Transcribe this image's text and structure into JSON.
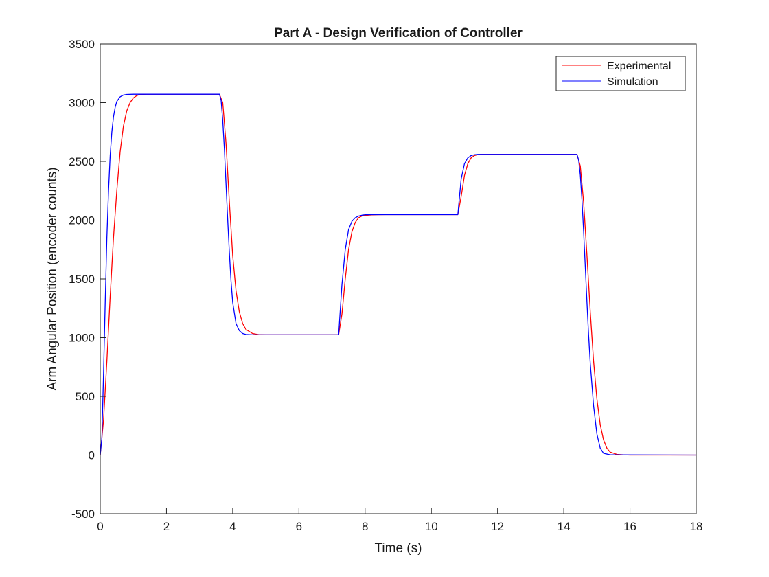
{
  "chart_data": {
    "type": "line",
    "title": "Part A - Design Verification of Controller",
    "xlabel": "Time (s)",
    "ylabel": "Arm Angular Position (encoder counts)",
    "xlim": [
      0,
      18
    ],
    "ylim": [
      -500,
      3500
    ],
    "xticks": [
      0,
      2,
      4,
      6,
      8,
      10,
      12,
      14,
      16,
      18
    ],
    "yticks": [
      -500,
      0,
      500,
      1000,
      1500,
      2000,
      2500,
      3000,
      3500
    ],
    "grid": false,
    "legend_position": "top-right",
    "series": [
      {
        "name": "Experimental",
        "color": "#ff0000",
        "x": [
          0,
          0.1,
          0.2,
          0.3,
          0.4,
          0.5,
          0.6,
          0.7,
          0.8,
          0.9,
          1.0,
          1.1,
          1.2,
          1.4,
          1.6,
          3.6,
          3.7,
          3.8,
          3.9,
          4.0,
          4.1,
          4.2,
          4.3,
          4.4,
          4.6,
          4.8,
          5.0,
          7.2,
          7.3,
          7.4,
          7.5,
          7.6,
          7.7,
          7.8,
          7.9,
          8.0,
          8.2,
          8.4,
          8.6,
          10.8,
          10.9,
          11.0,
          11.1,
          11.2,
          11.3,
          11.4,
          11.5,
          11.6,
          11.8,
          12.0,
          14.4,
          14.5,
          14.6,
          14.7,
          14.8,
          14.9,
          15.0,
          15.1,
          15.2,
          15.3,
          15.4,
          15.6,
          15.8,
          16.0,
          18.0
        ],
        "y": [
          0,
          300,
          800,
          1350,
          1850,
          2250,
          2580,
          2800,
          2930,
          3000,
          3040,
          3060,
          3070,
          3072,
          3072,
          3072,
          3000,
          2650,
          2150,
          1700,
          1400,
          1220,
          1120,
          1070,
          1035,
          1025,
          1024,
          1024,
          1200,
          1500,
          1750,
          1900,
          1980,
          2020,
          2035,
          2040,
          2045,
          2046,
          2047,
          2047,
          2200,
          2380,
          2480,
          2530,
          2550,
          2558,
          2560,
          2560,
          2560,
          2560,
          2560,
          2460,
          2150,
          1700,
          1220,
          800,
          480,
          260,
          130,
          60,
          25,
          6,
          2,
          0,
          0
        ]
      },
      {
        "name": "Simulation",
        "color": "#0000ff",
        "x": [
          0,
          0.05,
          0.1,
          0.15,
          0.2,
          0.25,
          0.3,
          0.35,
          0.4,
          0.45,
          0.5,
          0.6,
          0.7,
          0.8,
          1.0,
          3.6,
          3.65,
          3.7,
          3.75,
          3.8,
          3.85,
          3.9,
          3.95,
          4.0,
          4.1,
          4.2,
          4.3,
          4.4,
          4.6,
          7.2,
          7.3,
          7.4,
          7.5,
          7.6,
          7.7,
          7.8,
          7.9,
          8.0,
          8.2,
          10.8,
          10.9,
          11.0,
          11.1,
          11.2,
          11.3,
          11.4,
          11.6,
          14.4,
          14.45,
          14.5,
          14.55,
          14.6,
          14.65,
          14.7,
          14.75,
          14.8,
          14.9,
          15.0,
          15.1,
          15.2,
          15.4,
          18.0
        ],
        "y": [
          0,
          150,
          700,
          1300,
          1850,
          2250,
          2550,
          2750,
          2880,
          2960,
          3010,
          3050,
          3065,
          3070,
          3072,
          3072,
          3020,
          2850,
          2600,
          2300,
          2000,
          1720,
          1480,
          1300,
          1120,
          1060,
          1035,
          1027,
          1024,
          1024,
          1450,
          1750,
          1920,
          1990,
          2020,
          2035,
          2042,
          2046,
          2047,
          2047,
          2350,
          2480,
          2530,
          2550,
          2557,
          2560,
          2560,
          2560,
          2510,
          2380,
          2170,
          1900,
          1600,
          1300,
          1020,
          780,
          420,
          180,
          60,
          15,
          2,
          0
        ]
      }
    ]
  }
}
